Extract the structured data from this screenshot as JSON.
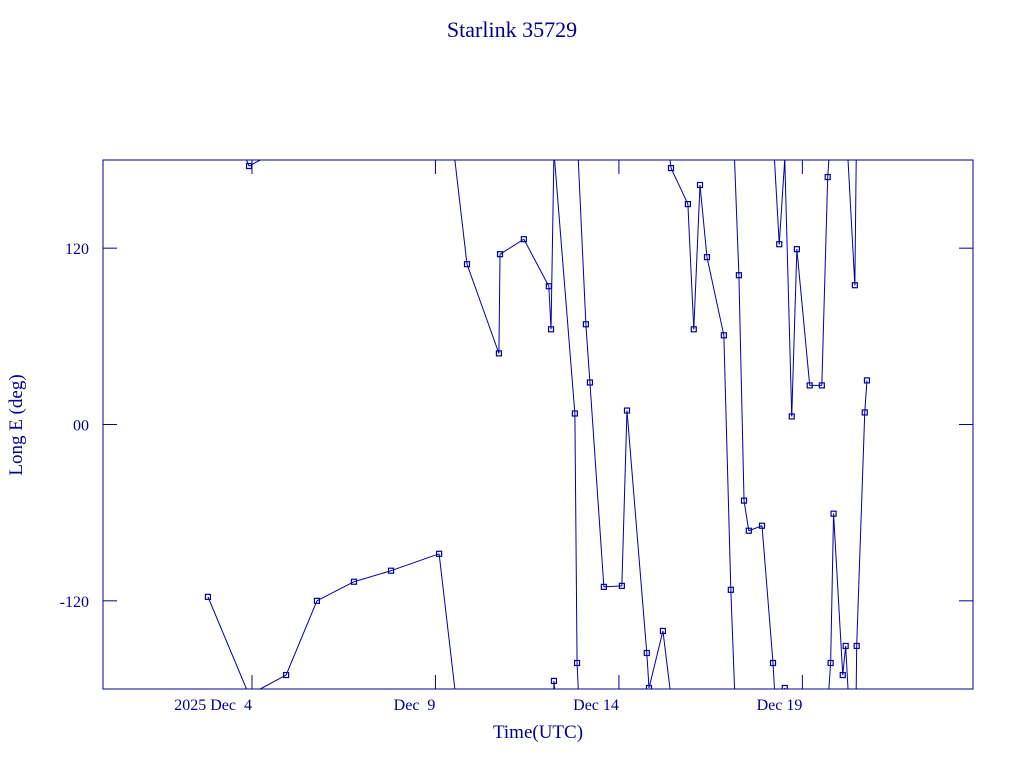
{
  "chart_data": {
    "type": "line",
    "title": "Starlink 35729",
    "xlabel": "Time(UTC)",
    "ylabel": "Long E (deg)",
    "color": "#0000a0",
    "wrap": true,
    "x": [
      2.8,
      3.92,
      4.93,
      5.77,
      6.78,
      7.79,
      9.1,
      9.86,
      10.73,
      10.76,
      11.41,
      12.09,
      12.15,
      12.23,
      12.8,
      12.86,
      13.1,
      13.21,
      13.59,
      14.08,
      14.22,
      14.76,
      14.82,
      15.2,
      15.42,
      15.88,
      16.04,
      16.21,
      16.4,
      16.86,
      17.05,
      17.27,
      17.41,
      17.54,
      17.9,
      18.2,
      18.37,
      18.52,
      18.71,
      18.85,
      19.2,
      19.53,
      19.69,
      19.77,
      19.85,
      20.1,
      20.18,
      20.43,
      20.48,
      20.7,
      20.76
    ],
    "values": [
      -117.3,
      175.9,
      -170.5,
      -120.0,
      -107.0,
      -99.5,
      -88.0,
      109.1,
      48.4,
      115.9,
      126.1,
      94.1,
      64.8,
      -174.5,
      7.5,
      -162.3,
      68.2,
      28.6,
      -110.5,
      -109.8,
      9.5,
      -155.5,
      -179.3,
      -140.5,
      174.5,
      150.0,
      64.8,
      163.0,
      113.9,
      60.7,
      -112.5,
      101.6,
      -51.8,
      -72.3,
      -68.9,
      -162.3,
      122.7,
      -179.3,
      5.5,
      119.3,
      26.6,
      26.6,
      168.4,
      -162.3,
      -60.7,
      -170.5,
      -150.7,
      94.8,
      -150.7,
      8.2,
      30.0
    ],
    "xlim": [
      -0.06,
      23.65
    ],
    "xticks": [
      {
        "value": 4,
        "label": "2025 Dec  4"
      },
      {
        "value": 9,
        "label": "Dec  9"
      },
      {
        "value": 14,
        "label": "Dec 14"
      },
      {
        "value": 19,
        "label": "Dec 19"
      }
    ],
    "ylim": [
      -180,
      180
    ],
    "yticks": [
      -120,
      {
        "value": 0,
        "label": "00"
      },
      120
    ]
  }
}
